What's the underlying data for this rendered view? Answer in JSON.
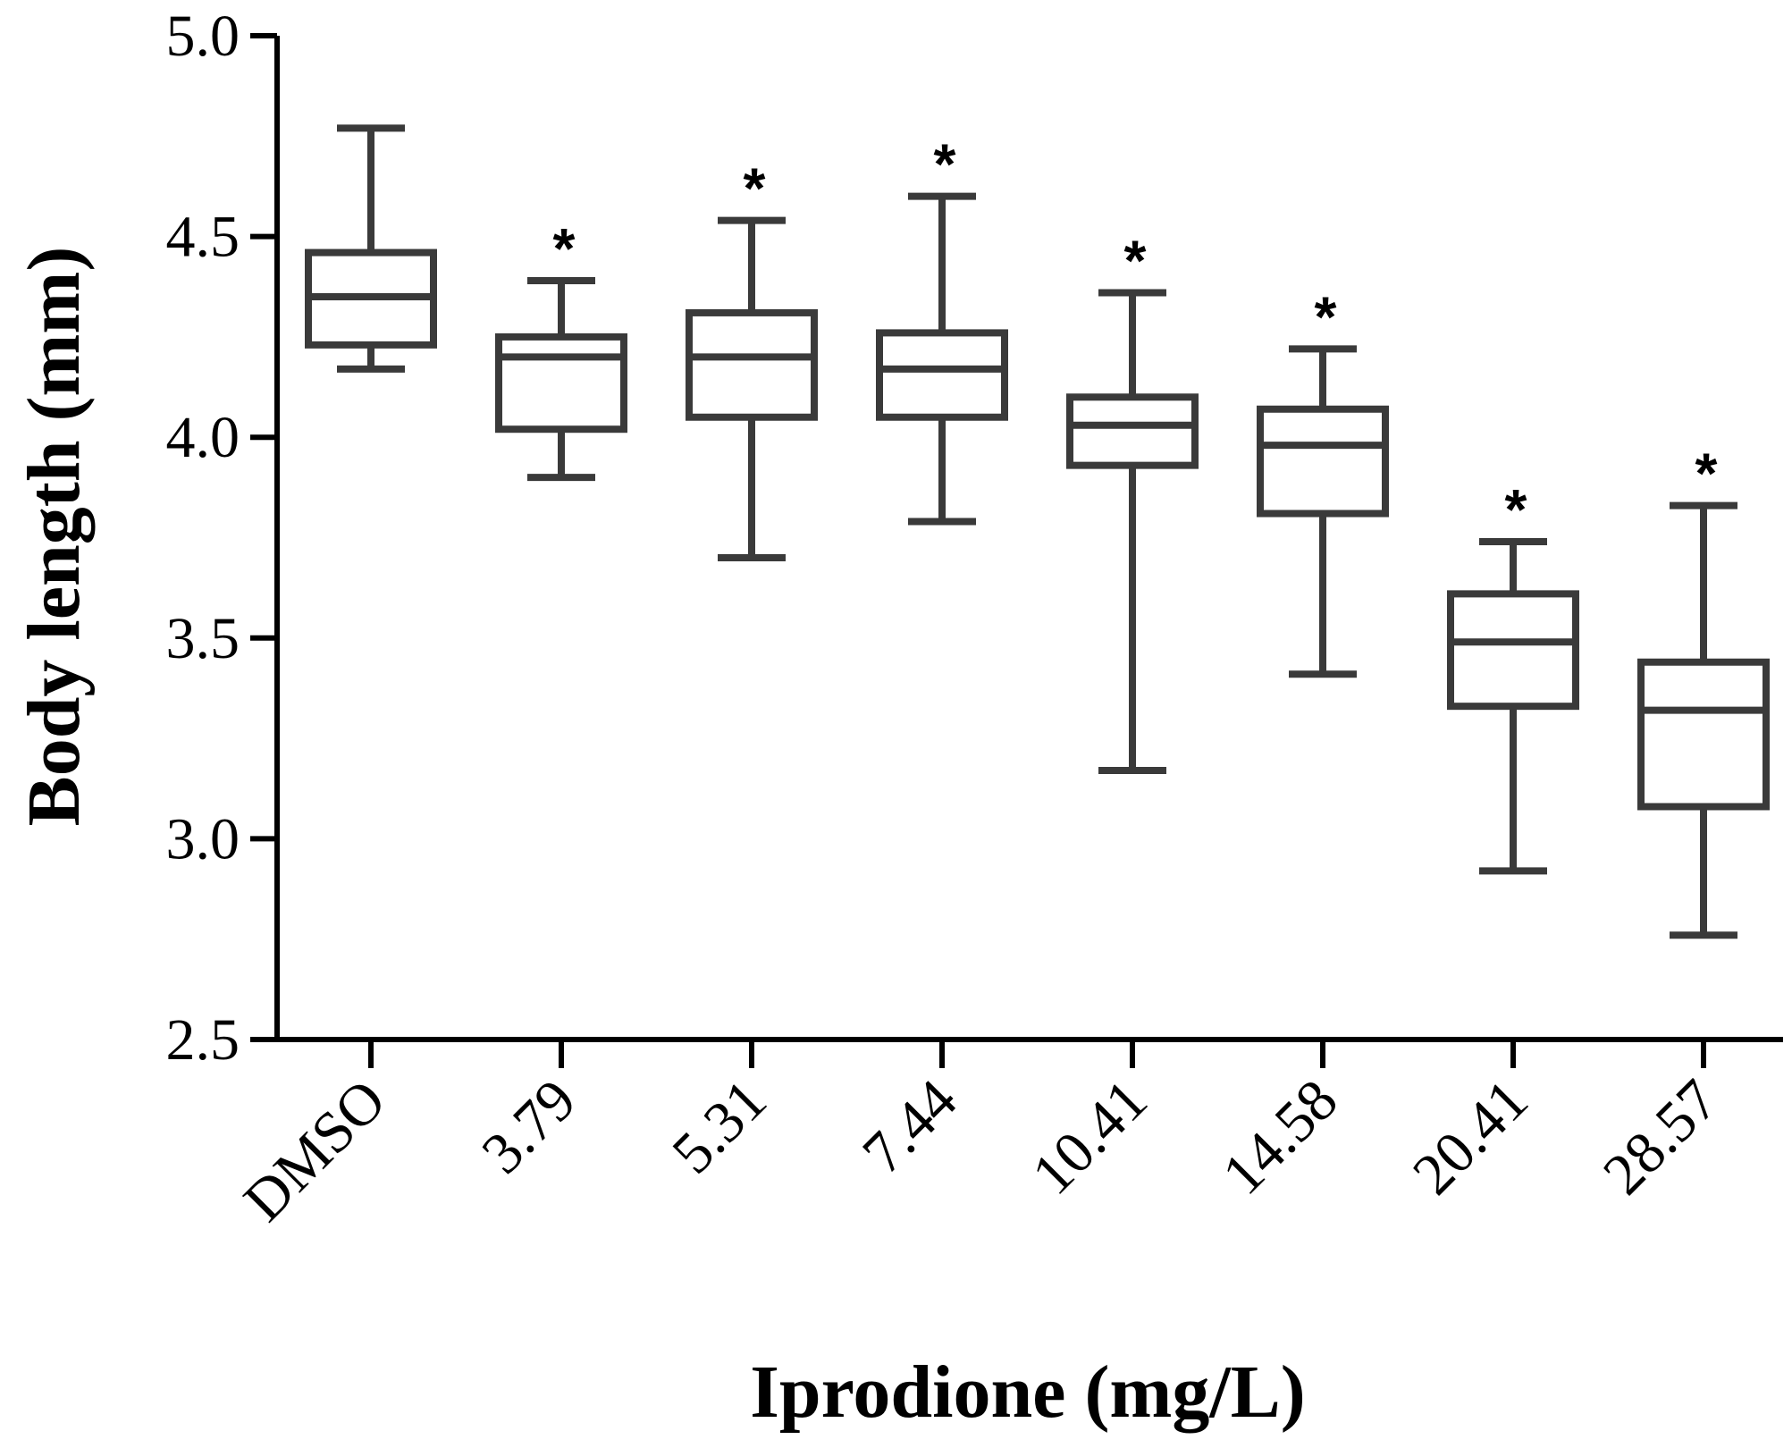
{
  "chart_data": {
    "type": "box",
    "xlabel": "Iprodione (mg/L)",
    "ylabel": "Body length (mm)",
    "ylim": [
      2.5,
      5.0
    ],
    "yticks": [
      "2.5",
      "3.0",
      "3.5",
      "4.0",
      "4.5",
      "5.0"
    ],
    "categories": [
      "DMSO",
      "3.79",
      "5.31",
      "7.44",
      "10.41",
      "14.58",
      "20.41",
      "28.57"
    ],
    "boxes": [
      {
        "min": 4.17,
        "q1": 4.23,
        "median": 4.35,
        "q3": 4.46,
        "max": 4.77,
        "significant": ""
      },
      {
        "min": 3.9,
        "q1": 4.02,
        "median": 4.2,
        "q3": 4.25,
        "max": 4.39,
        "significant": "*"
      },
      {
        "min": 3.7,
        "q1": 4.05,
        "median": 4.2,
        "q3": 4.31,
        "max": 4.54,
        "significant": "*"
      },
      {
        "min": 3.79,
        "q1": 4.05,
        "median": 4.17,
        "q3": 4.26,
        "max": 4.6,
        "significant": "*"
      },
      {
        "min": 3.17,
        "q1": 3.93,
        "median": 4.03,
        "q3": 4.1,
        "max": 4.36,
        "significant": "*"
      },
      {
        "min": 3.41,
        "q1": 3.81,
        "median": 3.98,
        "q3": 4.07,
        "max": 4.22,
        "significant": "*"
      },
      {
        "min": 2.92,
        "q1": 3.33,
        "median": 3.49,
        "q3": 3.61,
        "max": 3.74,
        "significant": "*"
      },
      {
        "min": 2.76,
        "q1": 3.08,
        "median": 3.32,
        "q3": 3.44,
        "max": 3.83,
        "significant": "*"
      }
    ]
  }
}
